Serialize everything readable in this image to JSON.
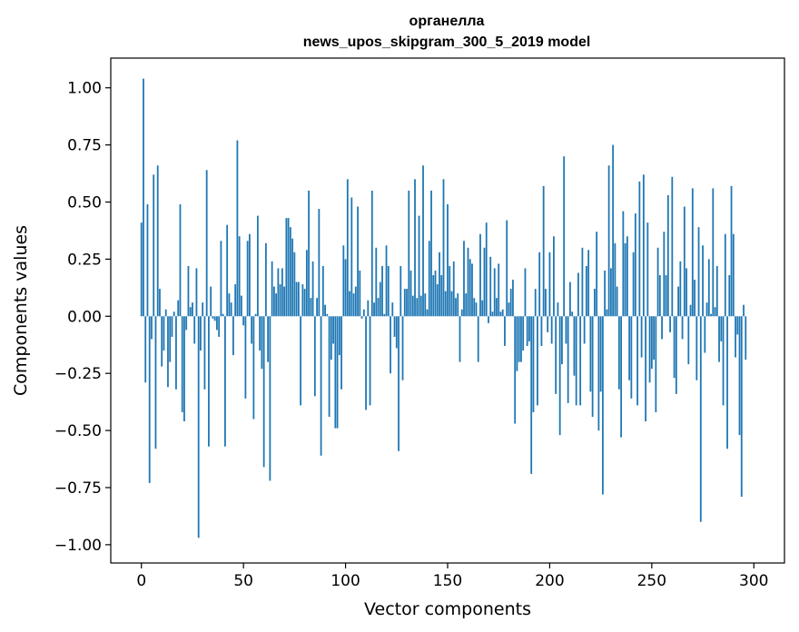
{
  "chart_data": {
    "type": "bar",
    "title": "органелла",
    "subtitle": "news_upos_skipgram_300_5_2019 model",
    "xlabel": "Vector components",
    "ylabel": "Components values",
    "xlim": [
      -15,
      315
    ],
    "ylim": [
      -1.08,
      1.13
    ],
    "xticks": [
      "0",
      "50",
      "100",
      "150",
      "200",
      "250",
      "300"
    ],
    "yticks": [
      "−1.00",
      "−0.75",
      "−0.50",
      "−0.25",
      "0.00",
      "0.25",
      "0.50",
      "0.75",
      "1.00"
    ],
    "bar_color": "#1f77b4",
    "grid": false,
    "legend": "none",
    "values": [
      0.41,
      1.04,
      -0.29,
      0.49,
      -0.73,
      -0.1,
      0.62,
      -0.58,
      0.66,
      0.12,
      -0.22,
      -0.15,
      0.03,
      -0.31,
      -0.2,
      -0.09,
      0.02,
      -0.32,
      0.07,
      0.49,
      -0.42,
      -0.46,
      -0.06,
      0.22,
      0.04,
      0.06,
      -0.12,
      0.21,
      -0.97,
      -0.15,
      0.06,
      -0.32,
      0.64,
      -0.57,
      0.13,
      -0.01,
      -0.02,
      -0.06,
      -0.09,
      0.33,
      0.01,
      -0.57,
      0.4,
      0.1,
      0.06,
      -0.17,
      0.14,
      0.77,
      0.35,
      0.09,
      -0.04,
      -0.36,
      0.33,
      0.36,
      -0.12,
      -0.45,
      0.01,
      0.44,
      -0.15,
      -0.23,
      -0.66,
      0.32,
      -0.2,
      -0.72,
      0.24,
      0.13,
      0.1,
      0.21,
      0.14,
      0.21,
      0.13,
      0.43,
      0.43,
      0.39,
      0.34,
      0.28,
      0.15,
      0.15,
      -0.39,
      0.14,
      0.12,
      0.29,
      0.55,
      0.08,
      0.24,
      -0.35,
      0.08,
      0.47,
      -0.61,
      0.22,
      0.05,
      0.01,
      -0.44,
      -0.19,
      -0.12,
      -0.49,
      -0.49,
      -0.17,
      -0.32,
      0.31,
      0.25,
      0.6,
      0.11,
      0.52,
      0.1,
      0.13,
      0.48,
      0.2,
      -0.01,
      0.03,
      -0.41,
      0.07,
      -0.39,
      0.55,
      0.06,
      0.3,
      0.08,
      0.15,
      0.22,
      0.01,
      0.31,
      0.22,
      -0.25,
      0.06,
      -0.09,
      -0.14,
      -0.59,
      0.22,
      -0.28,
      0.12,
      0.12,
      0.55,
      0.2,
      0.09,
      0.6,
      0.08,
      0.44,
      0.09,
      0.66,
      0.1,
      0.03,
      0.33,
      0.55,
      0.18,
      0.2,
      0.14,
      0.28,
      0.18,
      0.6,
      0.11,
      0.49,
      0.22,
      0.11,
      0.24,
      0.08,
      0.1,
      -0.2,
      0.03,
      0.33,
      0.1,
      0.3,
      0.25,
      0.23,
      0.08,
      0.06,
      -0.2,
      0.36,
      0.07,
      0.3,
      0.41,
      -0.03,
      0.26,
      0.02,
      0.21,
      0.08,
      0.23,
      0.02,
      0.03,
      -0.13,
      0.42,
      0.06,
      0.12,
      0.16,
      -0.47,
      -0.24,
      -0.2,
      -0.2,
      -0.15,
      0.21,
      -0.13,
      -0.11,
      -0.69,
      -0.42,
      0.12,
      -0.39,
      0.28,
      -0.13,
      0.57,
      0.12,
      -0.07,
      0.28,
      -0.12,
      0.35,
      -0.34,
      0.06,
      -0.52,
      -0.21,
      0.7,
      -0.12,
      -0.38,
      0.15,
      0.02,
      -0.26,
      -0.39,
      0.19,
      -0.39,
      0.3,
      -0.12,
      0.22,
      0.29,
      -0.33,
      -0.44,
      0.12,
      0.37,
      -0.5,
      -0.33,
      -0.78,
      0.2,
      0.03,
      0.66,
      0.21,
      0.75,
      0.32,
      0.13,
      -0.32,
      -0.53,
      0.46,
      0.32,
      0.35,
      -0.28,
      -0.36,
      0.28,
      0.45,
      -0.39,
      0.59,
      -0.18,
      0.62,
      -0.46,
      0.41,
      -0.29,
      -0.23,
      -0.19,
      -0.42,
      0.3,
      0.18,
      -0.1,
      0.37,
      0.18,
      0.53,
      -0.07,
      0.61,
      -0.27,
      -0.34,
      0.13,
      0.24,
      -0.1,
      0.48,
      0.21,
      -0.21,
      0.05,
      0.56,
      0.16,
      -0.28,
      0.39,
      -0.9,
      0.31,
      -0.16,
      0.06,
      0.25,
      0.01,
      0.56,
      0.04,
      0.22,
      -0.2,
      -0.11,
      -0.39,
      0.36,
      -0.58,
      0.18,
      0.57,
      0.36,
      -0.18,
      -0.08,
      -0.52,
      -0.79,
      0.05,
      -0.19
    ],
    "values_note_omitted": false
  }
}
